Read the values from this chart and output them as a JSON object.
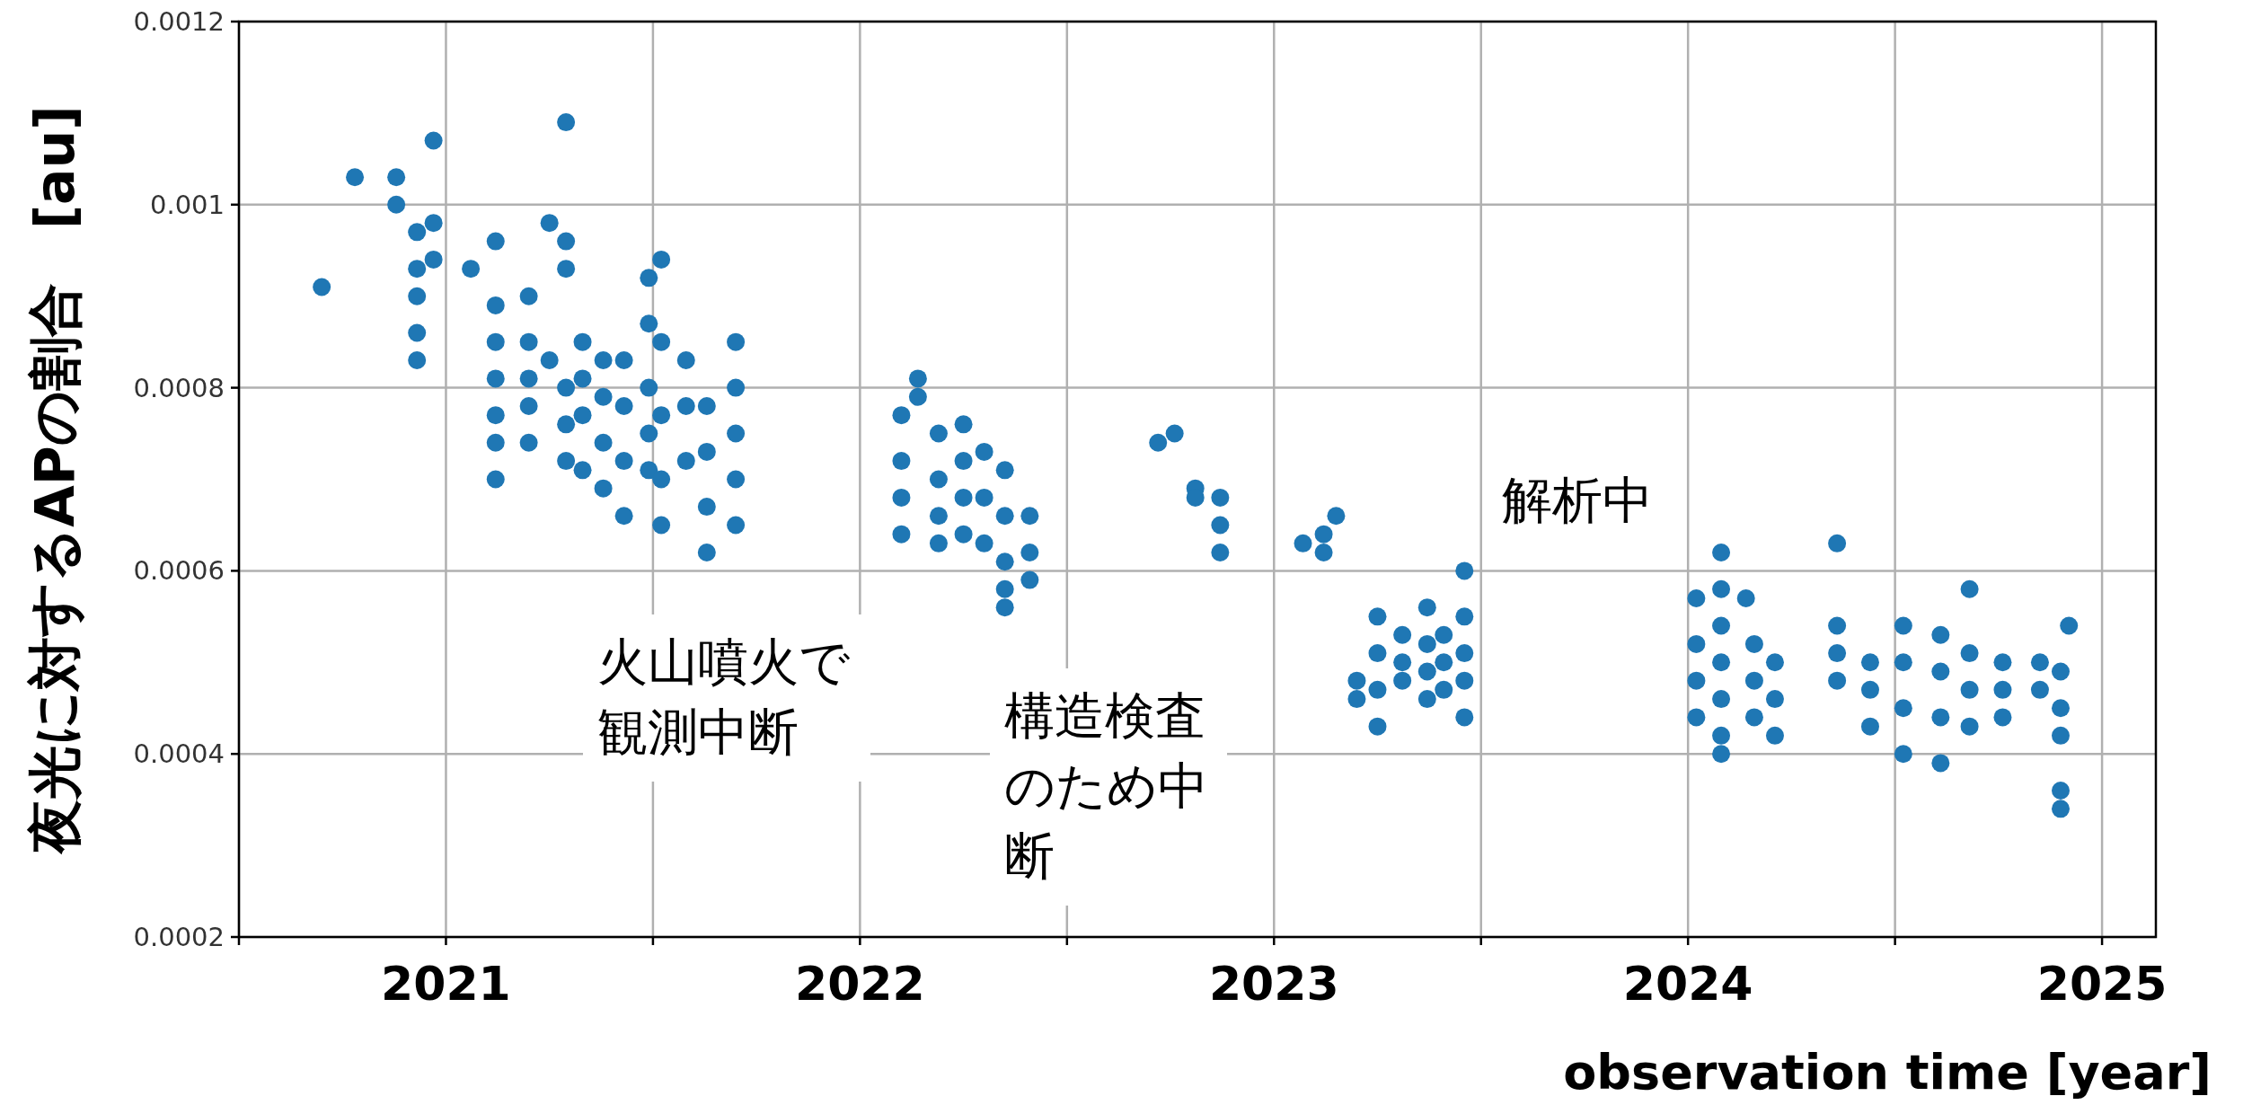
{
  "chart_data": {
    "type": "scatter",
    "xlabel": "observation time [year]",
    "ylabel": "夜光に対するAPの割合　[au]",
    "xlim": [
      2020.5,
      2025.13
    ],
    "ylim": [
      0.0002,
      0.0012
    ],
    "xticks": [
      {
        "value": 2020.5,
        "label": null
      },
      2021,
      {
        "value": 2021.5,
        "label": null
      },
      2022,
      {
        "value": 2022.5,
        "label": null
      },
      2023,
      {
        "value": 2023.5,
        "label": null
      },
      2024,
      {
        "value": 2024.5,
        "label": null
      },
      2025
    ],
    "yticks": [
      0.0002,
      0.0004,
      0.0006,
      0.0008,
      0.001,
      0.0012
    ],
    "grid": true,
    "marker": "circle",
    "series": [
      {
        "color": "#1f77b4",
        "x": [
          2020.7,
          2020.78,
          2020.88,
          2020.88,
          2020.93,
          2020.93,
          2020.93,
          2020.93,
          2020.93,
          2020.97,
          2020.97,
          2020.97,
          2021.06,
          2021.12,
          2021.12,
          2021.12,
          2021.12,
          2021.12,
          2021.12,
          2021.12,
          2021.2,
          2021.2,
          2021.2,
          2021.2,
          2021.2,
          2021.25,
          2021.25,
          2021.29,
          2021.29,
          2021.29,
          2021.29,
          2021.29,
          2021.29,
          2021.33,
          2021.33,
          2021.33,
          2021.33,
          2021.38,
          2021.38,
          2021.38,
          2021.38,
          2021.43,
          2021.43,
          2021.43,
          2021.43,
          2021.49,
          2021.49,
          2021.49,
          2021.49,
          2021.49,
          2021.52,
          2021.52,
          2021.52,
          2021.52,
          2021.52,
          2021.58,
          2021.58,
          2021.58,
          2021.63,
          2021.63,
          2021.63,
          2021.63,
          2021.7,
          2021.7,
          2021.7,
          2021.7,
          2021.7,
          2022.1,
          2022.1,
          2022.1,
          2022.1,
          2022.14,
          2022.14,
          2022.19,
          2022.19,
          2022.19,
          2022.19,
          2022.25,
          2022.25,
          2022.25,
          2022.25,
          2022.3,
          2022.3,
          2022.3,
          2022.35,
          2022.35,
          2022.35,
          2022.35,
          2022.35,
          2022.41,
          2022.41,
          2022.41,
          2022.72,
          2022.76,
          2022.81,
          2022.81,
          2022.87,
          2022.87,
          2022.87,
          2023.07,
          2023.12,
          2023.12,
          2023.15,
          2023.2,
          2023.2,
          2023.25,
          2023.25,
          2023.25,
          2023.25,
          2023.31,
          2023.31,
          2023.31,
          2023.37,
          2023.37,
          2023.37,
          2023.37,
          2023.41,
          2023.41,
          2023.41,
          2023.46,
          2023.46,
          2023.46,
          2023.46,
          2023.46,
          2024.02,
          2024.02,
          2024.02,
          2024.02,
          2024.08,
          2024.08,
          2024.08,
          2024.08,
          2024.08,
          2024.08,
          2024.08,
          2024.14,
          2024.16,
          2024.16,
          2024.16,
          2024.21,
          2024.21,
          2024.21,
          2024.36,
          2024.36,
          2024.36,
          2024.36,
          2024.44,
          2024.44,
          2024.44,
          2024.52,
          2024.52,
          2024.52,
          2024.52,
          2024.61,
          2024.61,
          2024.61,
          2024.61,
          2024.68,
          2024.68,
          2024.68,
          2024.68,
          2024.76,
          2024.76,
          2024.76,
          2024.85,
          2024.85,
          2024.9,
          2024.9,
          2024.9,
          2024.9,
          2024.9,
          2024.92
        ],
        "values": [
          0.00091,
          0.00103,
          0.00103,
          0.001,
          0.00097,
          0.00093,
          0.0009,
          0.00086,
          0.00083,
          0.00107,
          0.00098,
          0.00094,
          0.00093,
          0.00096,
          0.00089,
          0.00085,
          0.00081,
          0.00077,
          0.00074,
          0.0007,
          0.0009,
          0.00085,
          0.00081,
          0.00078,
          0.00074,
          0.00098,
          0.00083,
          0.00109,
          0.00096,
          0.00093,
          0.0008,
          0.00076,
          0.00072,
          0.00085,
          0.00081,
          0.00077,
          0.00071,
          0.00083,
          0.00079,
          0.00074,
          0.00069,
          0.00083,
          0.00078,
          0.00072,
          0.00066,
          0.00092,
          0.00087,
          0.0008,
          0.00075,
          0.00071,
          0.00094,
          0.00085,
          0.00077,
          0.0007,
          0.00065,
          0.00083,
          0.00078,
          0.00072,
          0.00078,
          0.00073,
          0.00067,
          0.00062,
          0.00085,
          0.0008,
          0.00075,
          0.0007,
          0.00065,
          0.00077,
          0.00072,
          0.00068,
          0.00064,
          0.00081,
          0.00079,
          0.00075,
          0.0007,
          0.00066,
          0.00063,
          0.00076,
          0.00072,
          0.00068,
          0.00064,
          0.00073,
          0.00068,
          0.00063,
          0.00071,
          0.00066,
          0.00061,
          0.00058,
          0.00056,
          0.00066,
          0.00062,
          0.00059,
          0.00074,
          0.00075,
          0.00069,
          0.00068,
          0.00068,
          0.00065,
          0.00062,
          0.00063,
          0.00064,
          0.00062,
          0.00066,
          0.00048,
          0.00046,
          0.00055,
          0.00051,
          0.00047,
          0.00043,
          0.00053,
          0.0005,
          0.00048,
          0.00056,
          0.00052,
          0.00049,
          0.00046,
          0.00053,
          0.0005,
          0.00047,
          0.0006,
          0.00055,
          0.00051,
          0.00048,
          0.00044,
          0.00057,
          0.00052,
          0.00048,
          0.00044,
          0.00062,
          0.00058,
          0.00054,
          0.0005,
          0.00046,
          0.00042,
          0.0004,
          0.00057,
          0.00052,
          0.00048,
          0.00044,
          0.0005,
          0.00046,
          0.00042,
          0.00063,
          0.00054,
          0.00051,
          0.00048,
          0.0005,
          0.00047,
          0.00043,
          0.00054,
          0.0005,
          0.00045,
          0.0004,
          0.00053,
          0.00049,
          0.00044,
          0.00039,
          0.00058,
          0.00051,
          0.00047,
          0.00043,
          0.0005,
          0.00047,
          0.00044,
          0.0005,
          0.00047,
          0.00049,
          0.00045,
          0.00042,
          0.00036,
          0.00034,
          0.00054
        ]
      }
    ],
    "annotations": [
      "火山噴火で観測中断",
      "構造検査のため中断",
      "解析中"
    ]
  }
}
